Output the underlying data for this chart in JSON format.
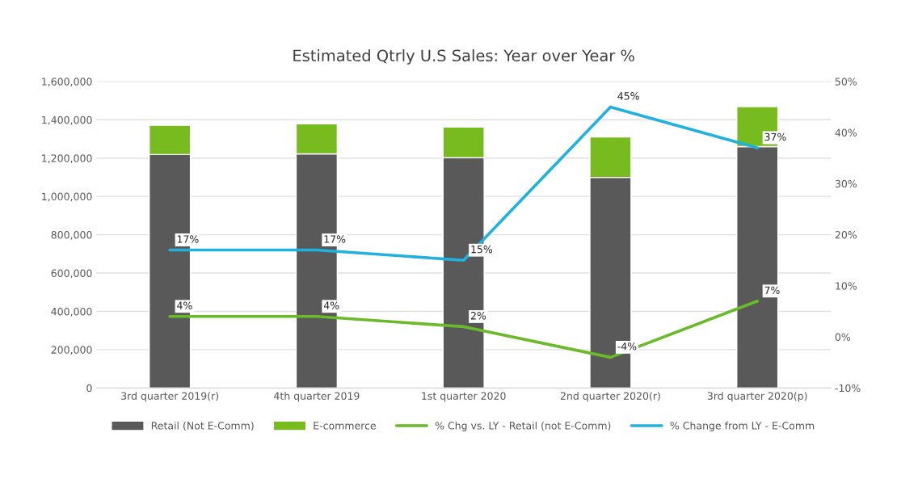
{
  "chart_data": {
    "type": "bar",
    "title": "Estimated Qtrly U.S Sales: Year over Year %",
    "categories": [
      "3rd quarter 2019(r)",
      "4th quarter 2019",
      "1st quarter 2020",
      "2nd quarter 2020(r)",
      "3rd quarter 2020(p)"
    ],
    "stacked": true,
    "series": [
      {
        "name": "Retail (Not E-Comm)",
        "color": "#595959",
        "values": [
          1218000,
          1222000,
          1202000,
          1099000,
          1260000
        ]
      },
      {
        "name": "E-commerce",
        "color": "#77bb1f",
        "values": [
          153000,
          157000,
          160000,
          211000,
          208000
        ]
      },
      {
        "name": "% Chg vs. LY - Retail (not E-Comm)",
        "type": "line",
        "axis": "y2",
        "color": "#6aba2a",
        "values": [
          4,
          4,
          2,
          -4,
          7
        ],
        "value_labels": [
          "4%",
          "4%",
          "2%",
          "-4%",
          "7%"
        ]
      },
      {
        "name": "% Change from LY - E-Comm",
        "type": "line",
        "axis": "y2",
        "color": "#1fb2de",
        "values": [
          17,
          17,
          15,
          45,
          37
        ],
        "value_labels": [
          "17%",
          "17%",
          "15%",
          "45%",
          "37%"
        ]
      }
    ],
    "ylim": [
      0,
      1600000
    ],
    "yticks": [
      {
        "value": 0,
        "label": "0"
      },
      {
        "value": 200000,
        "label": "200,000"
      },
      {
        "value": 400000,
        "label": "400,000"
      },
      {
        "value": 600000,
        "label": "600,000"
      },
      {
        "value": 800000,
        "label": "800,000"
      },
      {
        "value": 1000000,
        "label": "1,000,000"
      },
      {
        "value": 1200000,
        "label": "1,200,000"
      },
      {
        "value": 1400000,
        "label": "1,400,000"
      },
      {
        "value": 1600000,
        "label": "1,600,000"
      }
    ],
    "y2lim": [
      -10,
      50
    ],
    "y2ticks": [
      {
        "value": -10,
        "label": "-10%"
      },
      {
        "value": 0,
        "label": "0%"
      },
      {
        "value": 10,
        "label": "10%"
      },
      {
        "value": 20,
        "label": "20%"
      },
      {
        "value": 30,
        "label": "30%"
      },
      {
        "value": 40,
        "label": "40%"
      },
      {
        "value": 50,
        "label": "50%"
      }
    ],
    "grid": "y",
    "legend": "bottom"
  }
}
